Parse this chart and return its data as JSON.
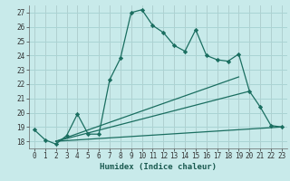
{
  "xlabel": "Humidex (Indice chaleur)",
  "bg_color": "#c8eaea",
  "grid_color": "#aad4d4",
  "line_color": "#1a6e60",
  "xlim": [
    -0.5,
    23.5
  ],
  "ylim": [
    17.5,
    27.5
  ],
  "xticks": [
    0,
    1,
    2,
    3,
    4,
    5,
    6,
    7,
    8,
    9,
    10,
    11,
    12,
    13,
    14,
    15,
    16,
    17,
    18,
    19,
    20,
    21,
    22,
    23
  ],
  "yticks": [
    18,
    19,
    20,
    21,
    22,
    23,
    24,
    25,
    26,
    27
  ],
  "line1_x": [
    0,
    1,
    2,
    3,
    4,
    5,
    6,
    7,
    8,
    9,
    10,
    11,
    12,
    13,
    14,
    15,
    16,
    17,
    18,
    19,
    20,
    21,
    22,
    23
  ],
  "line1_y": [
    18.8,
    18.1,
    17.8,
    18.4,
    19.9,
    18.5,
    18.5,
    22.3,
    23.8,
    27.0,
    27.2,
    26.1,
    25.6,
    24.7,
    24.3,
    25.8,
    24.0,
    23.7,
    23.6,
    24.1,
    21.5,
    20.4,
    19.1,
    19.0
  ],
  "line2_x": [
    2,
    19
  ],
  "line2_y": [
    18.0,
    22.5
  ],
  "line3_x": [
    2,
    20
  ],
  "line3_y": [
    18.0,
    21.5
  ],
  "line4_x": [
    2,
    23
  ],
  "line4_y": [
    18.0,
    19.0
  ]
}
